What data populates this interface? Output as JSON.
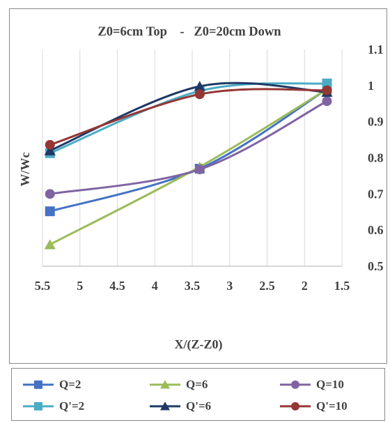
{
  "chart_data": {
    "type": "line",
    "title": "Z0=6cm Top    -   Z0=20cm Down",
    "xlabel": "X/(Z-Z0)",
    "ylabel": "W/Wc",
    "xlim": [
      5.5,
      1.5
    ],
    "x_reversed": true,
    "ylim": [
      0.5,
      1.1
    ],
    "x_ticks": [
      "5.5",
      "5",
      "4.5",
      "4",
      "3.5",
      "3",
      "2.5",
      "2",
      "1.5"
    ],
    "y_ticks": [
      "0.5",
      "0.6",
      "0.7",
      "0.8",
      "0.9",
      "1",
      "1.1"
    ],
    "y_axis_side": "right",
    "grid": "vertical",
    "legend_position": "bottom",
    "series": [
      {
        "name": "Q=2",
        "color": "#4472C4",
        "marker": "square",
        "x": [
          5.4,
          3.4,
          1.7
        ],
        "y": [
          0.652,
          0.77,
          0.99
        ]
      },
      {
        "name": "Q=6",
        "color": "#9BBB59",
        "marker": "triangle",
        "x": [
          5.4,
          3.4,
          1.7
        ],
        "y": [
          0.56,
          0.775,
          0.99
        ]
      },
      {
        "name": "Q=10",
        "color": "#8064A2",
        "marker": "circle",
        "x": [
          5.4,
          3.4,
          1.7
        ],
        "y": [
          0.7,
          0.768,
          0.957
        ]
      },
      {
        "name": "Q'=2",
        "color": "#4BACC6",
        "marker": "square",
        "x": [
          5.4,
          3.4,
          1.7
        ],
        "y": [
          0.813,
          0.985,
          1.006
        ]
      },
      {
        "name": "Q'=6",
        "color": "#1F3864",
        "marker": "triangle",
        "x": [
          5.4,
          3.4,
          1.7
        ],
        "y": [
          0.82,
          0.998,
          0.982
        ]
      },
      {
        "name": "Q'=10",
        "color": "#943634",
        "marker": "circle",
        "x": [
          5.4,
          3.4,
          1.7
        ],
        "y": [
          0.836,
          0.976,
          0.987
        ]
      }
    ]
  }
}
